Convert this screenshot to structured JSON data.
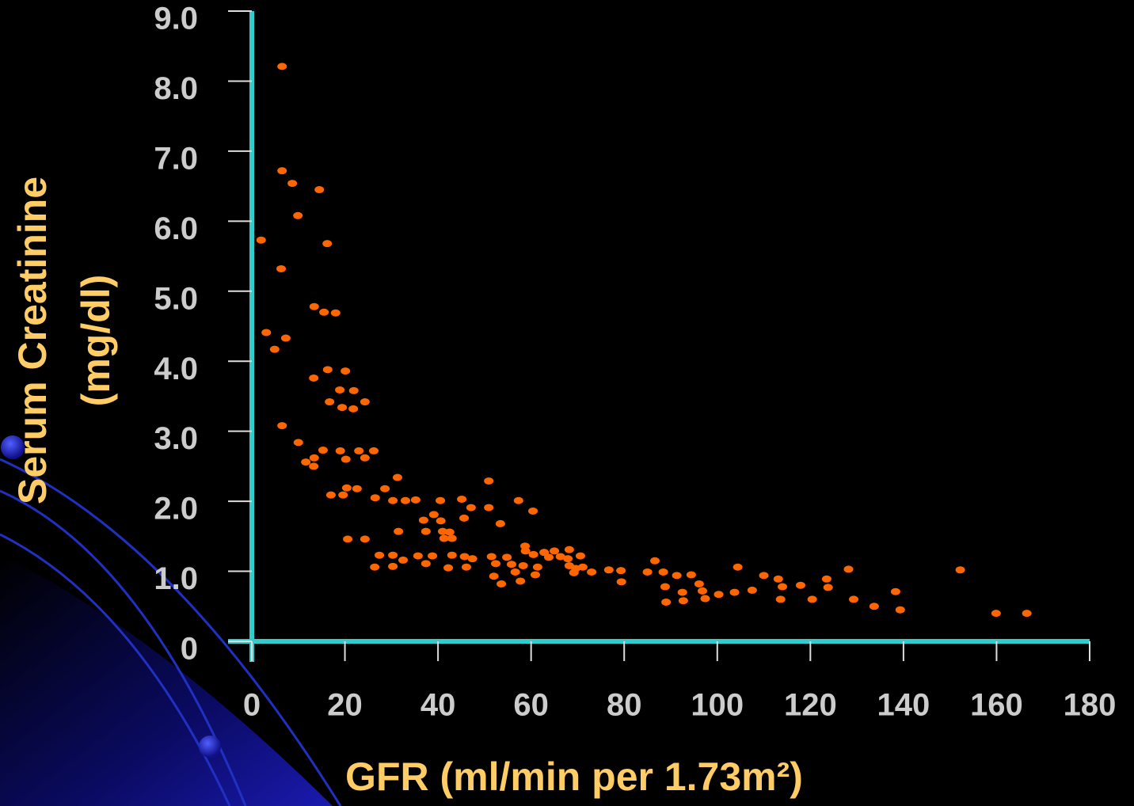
{
  "chart_data": {
    "type": "scatter",
    "xlabel": "GFR (ml/min per 1.73m²)",
    "ylabel": [
      "Serum Creatinine",
      "(mg/dl)"
    ],
    "color": "#ff6600",
    "x": [
      2.0,
      6.5,
      6.5,
      8.7,
      14.5,
      9.9,
      16.2,
      6.3,
      13.4,
      15.5,
      18.0,
      3.1,
      7.3,
      4.9,
      16.3,
      20.1,
      13.3,
      18.9,
      21.9,
      16.7,
      24.3,
      19.4,
      21.8,
      6.5,
      10.0,
      15.3,
      13.4,
      19.0,
      23.0,
      26.2,
      11.6,
      13.3,
      20.2,
      24.3,
      20.4,
      22.6,
      17.0,
      19.6,
      28.6,
      31.3,
      50.9,
      26.5,
      30.3,
      33.0,
      35.2,
      40.5,
      45.1,
      57.3,
      47.1,
      50.9,
      60.4,
      39.1,
      45.6,
      36.9,
      40.6,
      53.4,
      31.5,
      37.4,
      41.0,
      42.5,
      41.3,
      43.0,
      20.6,
      24.3,
      58.7,
      58.8,
      65.0,
      68.2,
      27.4,
      30.3,
      32.5,
      35.7,
      38.8,
      43.0,
      45.7,
      47.4,
      51.5,
      54.8,
      60.5,
      62.8,
      63.8,
      66.3,
      67.9,
      70.6,
      52.4,
      37.4,
      26.4,
      30.3,
      42.2,
      46.1,
      55.8,
      58.3,
      61.4,
      68.2,
      69.6,
      71.1,
      52.0,
      56.6,
      60.9,
      69.2,
      73.0,
      53.6,
      57.7,
      76.7,
      79.3,
      86.6,
      85.0,
      88.4,
      91.3,
      94.4,
      79.4,
      88.8,
      96.1,
      92.5,
      96.8,
      89.0,
      92.7,
      97.4,
      100.3,
      103.7,
      107.5,
      104.4,
      110.0,
      113.1,
      114.0,
      113.6,
      117.9,
      120.4,
      123.5,
      123.8,
      128.2,
      129.3,
      133.7,
      138.3,
      139.3,
      152.2,
      159.9,
      166.5
    ],
    "values": [
      5.73,
      8.21,
      6.72,
      6.54,
      6.45,
      6.08,
      5.68,
      5.32,
      4.78,
      4.7,
      4.69,
      4.41,
      4.33,
      4.17,
      3.88,
      3.86,
      3.76,
      3.59,
      3.58,
      3.42,
      3.42,
      3.34,
      3.32,
      3.08,
      2.84,
      2.73,
      2.62,
      2.72,
      2.72,
      2.72,
      2.56,
      2.5,
      2.6,
      2.62,
      2.19,
      2.18,
      2.09,
      2.09,
      2.18,
      2.34,
      2.29,
      2.05,
      2.01,
      2.01,
      2.02,
      2.01,
      2.03,
      2.01,
      1.91,
      1.91,
      1.86,
      1.81,
      1.76,
      1.73,
      1.72,
      1.68,
      1.57,
      1.57,
      1.57,
      1.56,
      1.47,
      1.47,
      1.46,
      1.46,
      1.36,
      1.29,
      1.29,
      1.31,
      1.23,
      1.23,
      1.16,
      1.22,
      1.22,
      1.23,
      1.21,
      1.18,
      1.21,
      1.2,
      1.24,
      1.27,
      1.2,
      1.21,
      1.18,
      1.22,
      1.11,
      1.11,
      1.06,
      1.07,
      1.05,
      1.06,
      1.1,
      1.08,
      1.06,
      1.08,
      1.04,
      1.06,
      0.93,
      0.99,
      0.95,
      0.98,
      0.99,
      0.82,
      0.86,
      1.02,
      1.01,
      1.15,
      0.99,
      0.99,
      0.94,
      0.95,
      0.85,
      0.78,
      0.82,
      0.7,
      0.72,
      0.56,
      0.58,
      0.61,
      0.67,
      0.7,
      0.73,
      1.06,
      0.94,
      0.89,
      0.78,
      0.6,
      0.8,
      0.6,
      0.89,
      0.77,
      1.03,
      0.6,
      0.5,
      0.71,
      0.45,
      1.02,
      0.4,
      0.4
    ],
    "xlim": [
      0,
      180
    ],
    "xticks": [
      0,
      20,
      40,
      60,
      80,
      100,
      120,
      140,
      160,
      180
    ],
    "ylim": [
      0,
      9
    ],
    "yticks": [
      0,
      {
        "value": 1,
        "label": "1.0"
      },
      {
        "value": 2,
        "label": "2.0"
      },
      {
        "value": 3,
        "label": "3.0"
      },
      {
        "value": 4,
        "label": "4.0"
      },
      {
        "value": 5,
        "label": "5.0"
      },
      {
        "value": 6,
        "label": "6.0"
      },
      {
        "value": 7,
        "label": "7.0"
      },
      {
        "value": 8,
        "label": "8.0"
      },
      {
        "value": 9,
        "label": "9.0"
      }
    ],
    "grid": false
  }
}
